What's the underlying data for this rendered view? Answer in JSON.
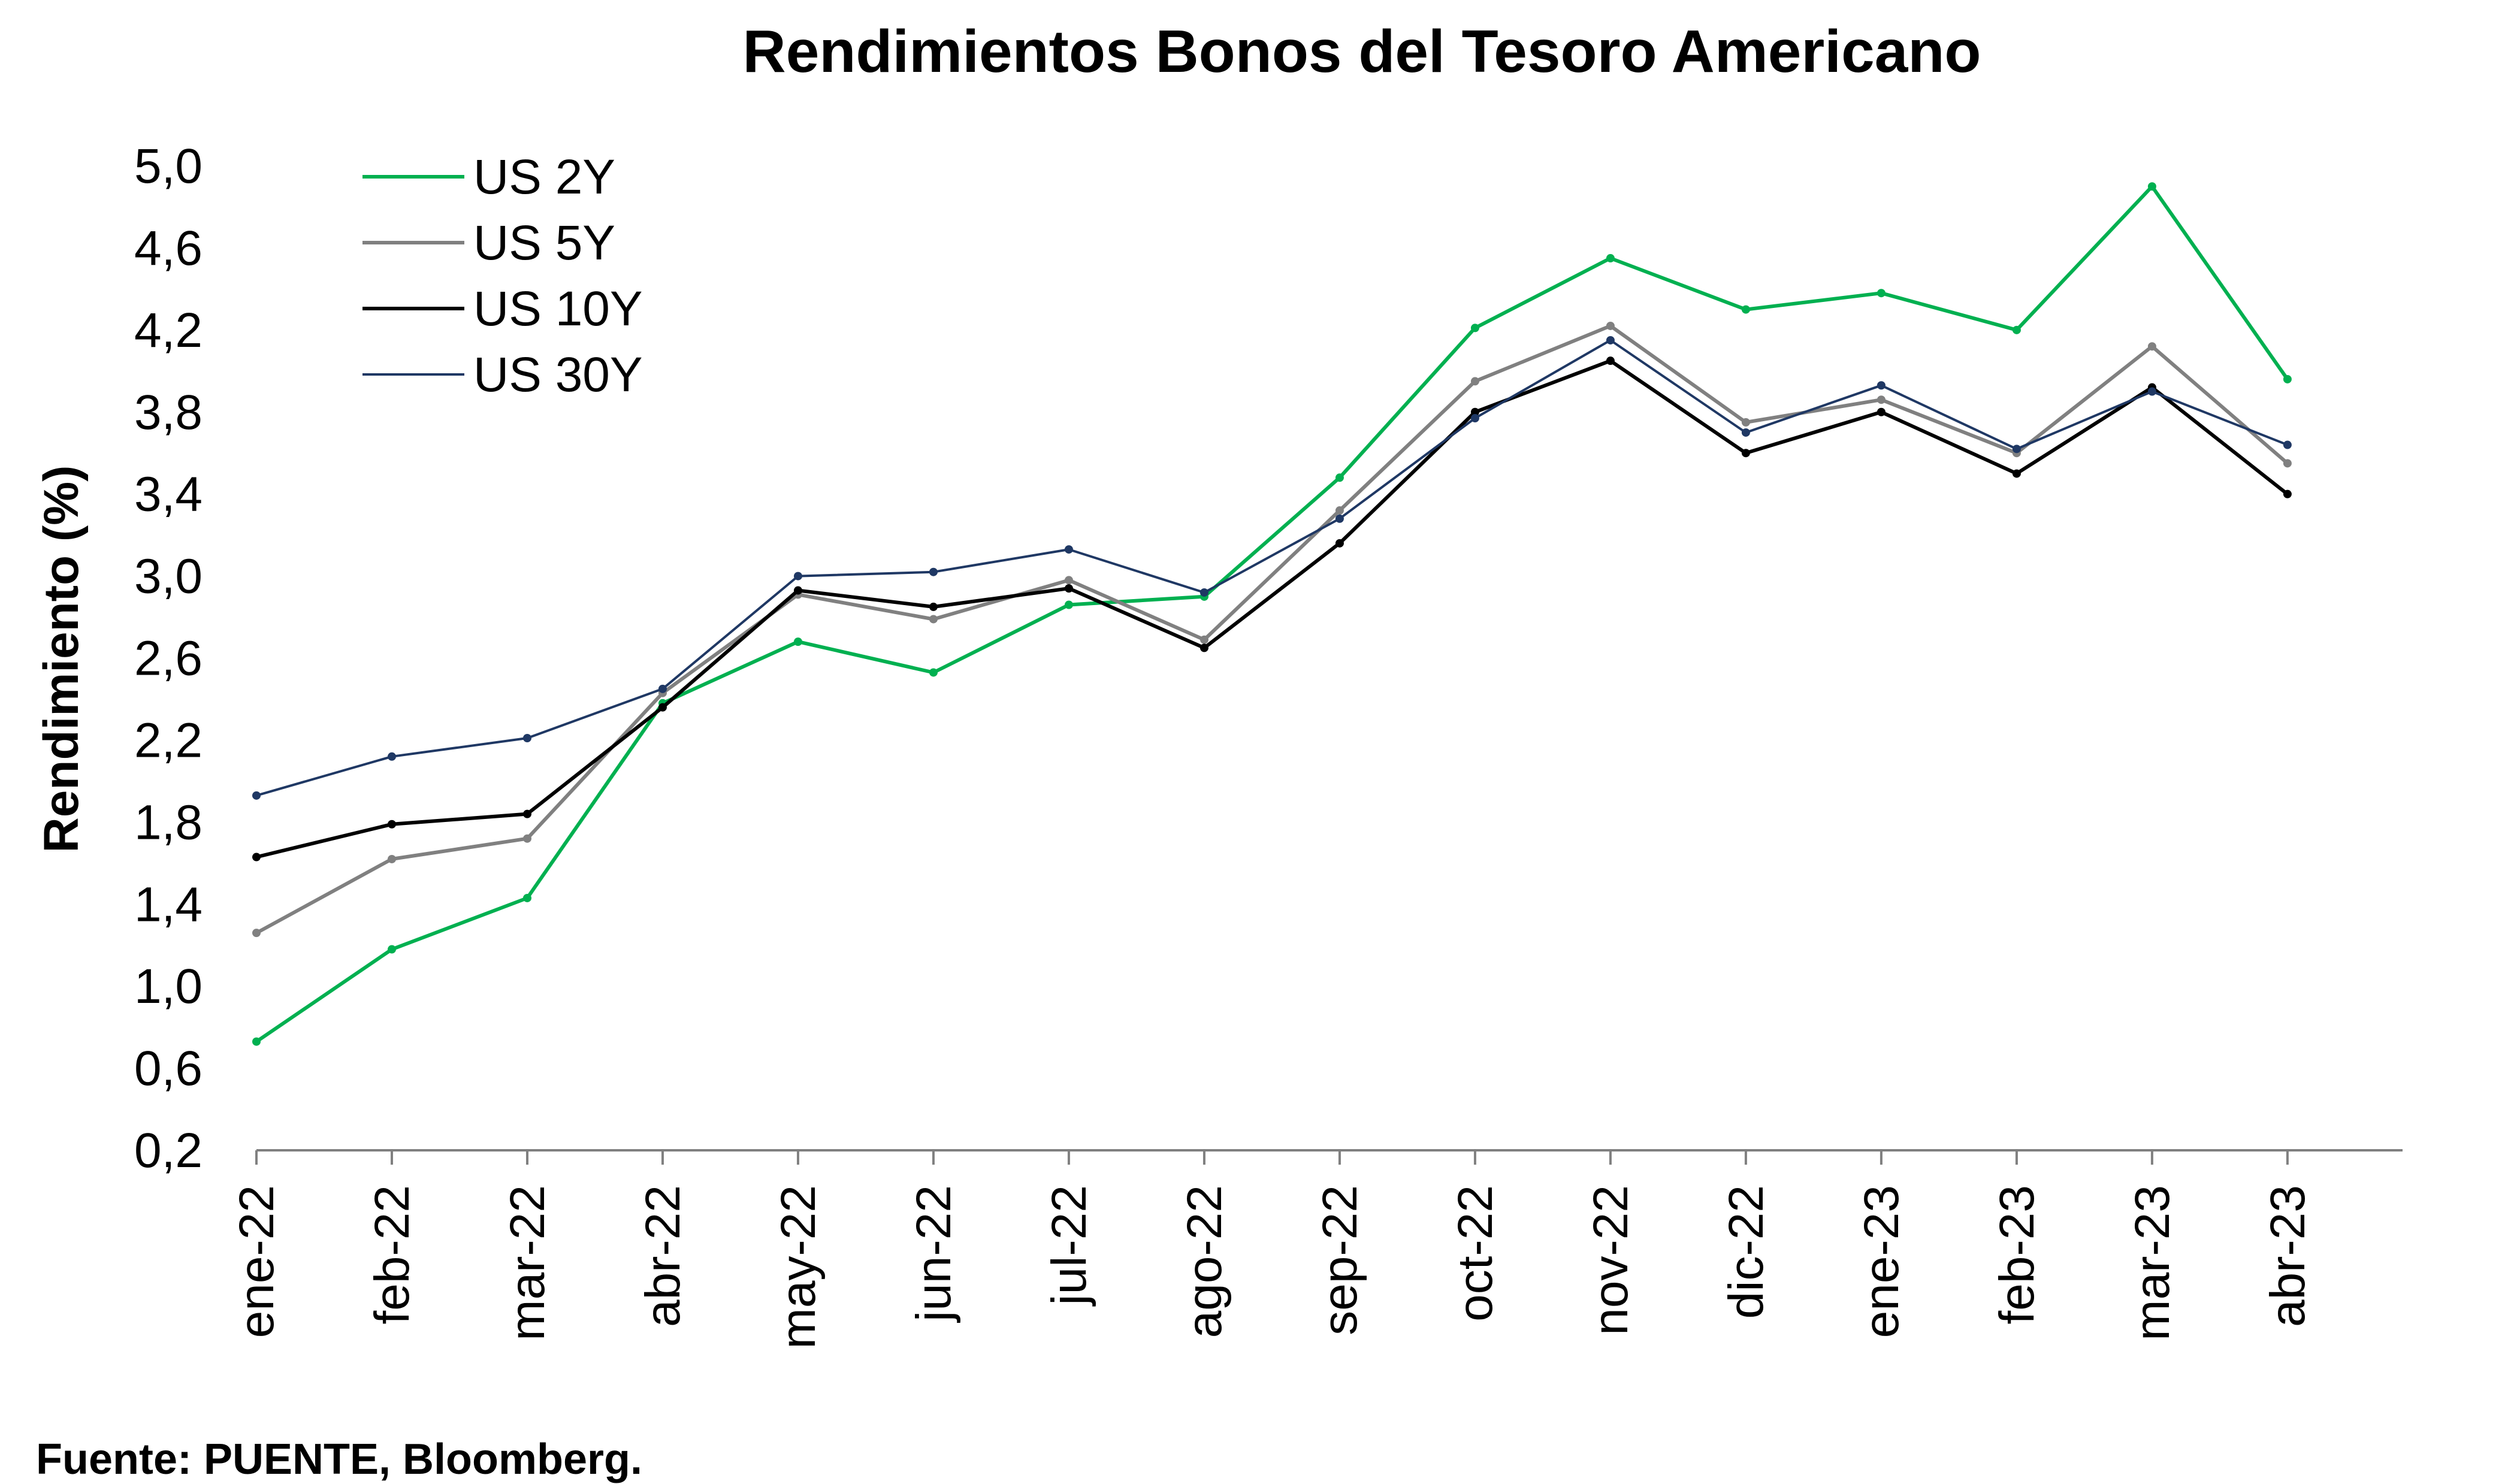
{
  "chart_data": {
    "type": "line",
    "title": "Rendimientos Bonos del Tesoro Americano",
    "ylabel": "Rendimiento (%)",
    "xlabel": "",
    "ylim": [
      0.2,
      5.0
    ],
    "y_ticks": [
      "0,2",
      "0,6",
      "1,0",
      "1,4",
      "1,8",
      "2,2",
      "2,6",
      "3,0",
      "3,4",
      "3,8",
      "4,2",
      "4,6",
      "5,0"
    ],
    "categories": [
      "ene-22",
      "feb-22",
      "mar-22",
      "abr-22",
      "may-22",
      "jun-22",
      "jul-22",
      "ago-22",
      "sep-22",
      "oct-22",
      "nov-22",
      "dic-22",
      "ene-23",
      "feb-23",
      "mar-23",
      "abr-23"
    ],
    "x": [
      "ene-22",
      "feb-22",
      "mar-22",
      "abr-22",
      "may-22",
      "jun-22",
      "jul-22",
      "ago-22",
      "sep-22",
      "oct-22",
      "nov-22",
      "dic-22",
      "ene-23",
      "feb-23",
      "mar-23",
      "abr-23"
    ],
    "grid": false,
    "legend_position": "top-left",
    "series": [
      {
        "name": "US 2Y",
        "color": "#00b050",
        "values": [
          0.73,
          1.18,
          1.43,
          2.38,
          2.68,
          2.53,
          2.86,
          2.9,
          3.48,
          4.21,
          4.55,
          4.3,
          4.38,
          4.2,
          4.9,
          3.96
        ]
      },
      {
        "name": "US 5Y",
        "color": "#808080",
        "values": [
          1.26,
          1.62,
          1.72,
          2.43,
          2.91,
          2.79,
          2.98,
          2.69,
          3.32,
          3.95,
          4.22,
          3.75,
          3.86,
          3.6,
          4.12,
          3.55
        ]
      },
      {
        "name": "US 10Y",
        "color": "#000000",
        "values": [
          1.63,
          1.79,
          1.84,
          2.36,
          2.93,
          2.85,
          2.94,
          2.65,
          3.16,
          3.8,
          4.05,
          3.6,
          3.8,
          3.5,
          3.92,
          3.4
        ]
      },
      {
        "name": "US 30Y",
        "color": "#1f3864",
        "values": [
          1.93,
          2.12,
          2.21,
          2.45,
          3.0,
          3.02,
          3.13,
          2.92,
          3.28,
          3.77,
          4.15,
          3.7,
          3.93,
          3.62,
          3.9,
          3.64
        ]
      }
    ]
  },
  "source": "Fuente: PUENTE, Bloomberg."
}
